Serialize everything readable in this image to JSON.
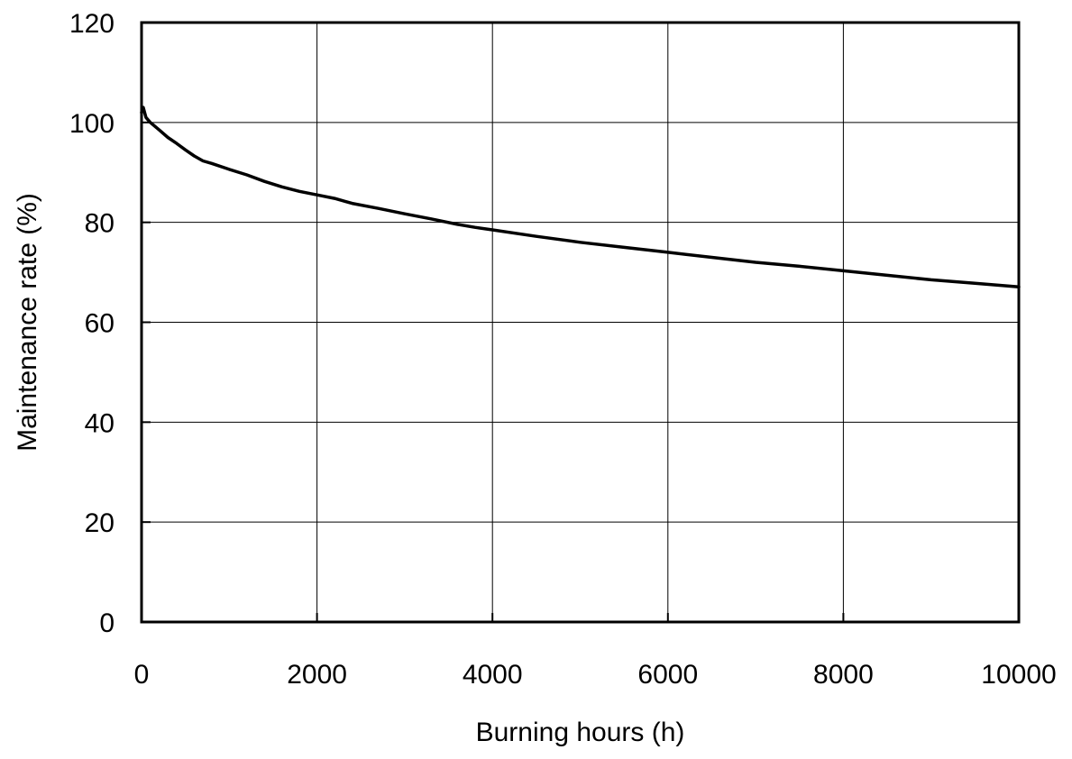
{
  "chart_data": {
    "type": "line",
    "title": "",
    "xlabel": "Burning hours (h)",
    "ylabel": "Maintenance rate (%)",
    "xlim": [
      0,
      10000
    ],
    "ylim": [
      0,
      120
    ],
    "x_ticks": [
      0,
      2000,
      4000,
      6000,
      8000,
      10000
    ],
    "y_ticks": [
      0,
      20,
      40,
      60,
      80,
      100,
      120
    ],
    "x_tick_labels": [
      "0",
      "2000",
      "4000",
      "6000",
      "8000",
      "10000"
    ],
    "y_tick_labels": [
      "0",
      "20",
      "40",
      "60",
      "80",
      "100",
      "120"
    ],
    "grid": true,
    "legend": "none",
    "series": [
      {
        "color": "#000000",
        "x": [
          0,
          20,
          50,
          100,
          200,
          300,
          400,
          500,
          600,
          700,
          800,
          1000,
          1200,
          1400,
          1600,
          1800,
          2000,
          2200,
          2400,
          2700,
          3000,
          3300,
          3600,
          3800,
          4000,
          4500,
          5000,
          5500,
          6000,
          6500,
          7000,
          7500,
          8000,
          8500,
          9000,
          9500,
          10000
        ],
        "y": [
          102,
          103,
          101,
          100,
          98.5,
          97,
          95.8,
          94.5,
          93.3,
          92.3,
          91.8,
          90.6,
          89.5,
          88.2,
          87.1,
          86.2,
          85.5,
          84.8,
          83.8,
          82.8,
          81.7,
          80.7,
          79.6,
          79,
          78.5,
          77.2,
          76,
          75,
          74,
          73,
          72,
          71.2,
          70.3,
          69.4,
          68.5,
          67.8,
          67.1
        ]
      }
    ]
  }
}
